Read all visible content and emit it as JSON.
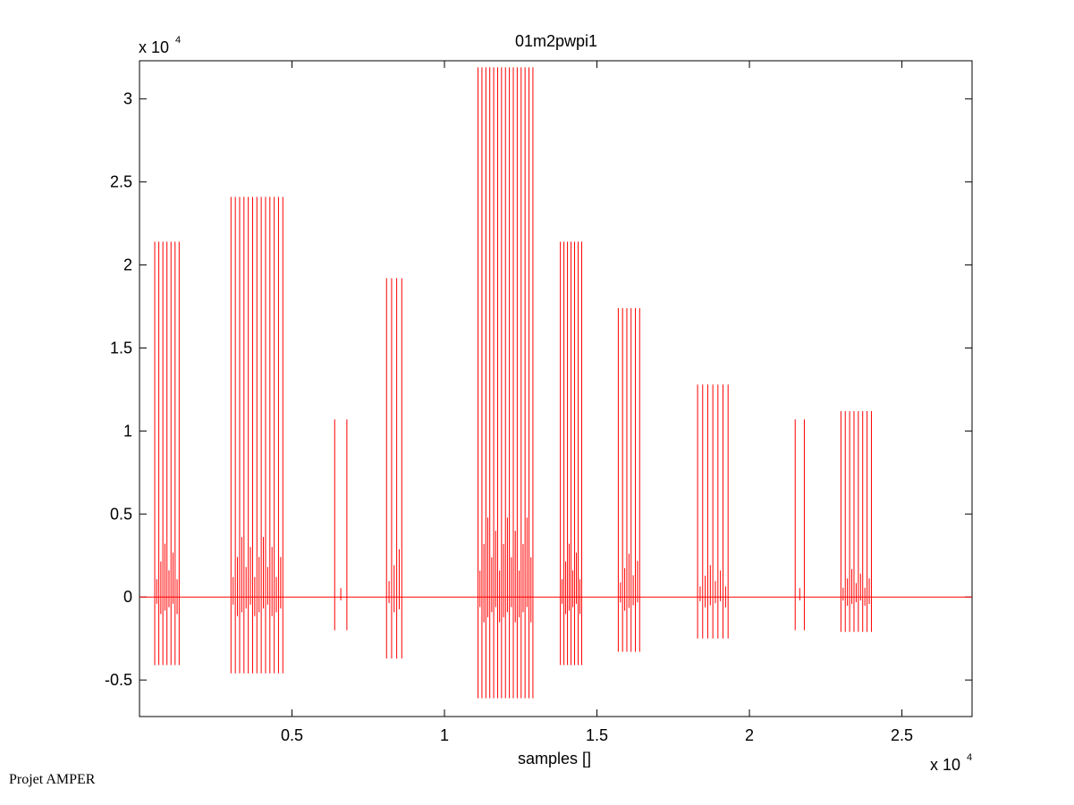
{
  "chart_data": {
    "type": "line",
    "title": "01m2pwpi1",
    "xlabel": "samples []",
    "ylabel": "",
    "x_multiplier": "x 10^4",
    "y_multiplier": "x 10^4",
    "xlim": [
      0,
      27300
    ],
    "ylim": [
      -7200,
      32300
    ],
    "xticks": [
      5000,
      10000,
      15000,
      20000,
      25000
    ],
    "xtick_labels": [
      "0.5",
      "1",
      "1.5",
      "2",
      "2.5"
    ],
    "yticks": [
      -5000,
      0,
      5000,
      10000,
      15000,
      20000,
      25000,
      30000
    ],
    "ytick_labels": [
      "-0.5",
      "0",
      "0.5",
      "1",
      "1.5",
      "2",
      "2.5",
      "3"
    ],
    "grid": false,
    "line_color": "#ff0000",
    "segments": [
      {
        "x_start": 500,
        "x_end": 1300,
        "count": 7,
        "min": -4100,
        "max": 21400
      },
      {
        "x_start": 3000,
        "x_end": 4700,
        "count": 13,
        "min": -4600,
        "max": 24100
      },
      {
        "x_start": 6400,
        "x_end": 6800,
        "count": 2,
        "min": -2000,
        "max": 10700
      },
      {
        "x_start": 8100,
        "x_end": 8600,
        "count": 4,
        "min": -3700,
        "max": 19200
      },
      {
        "x_start": 11100,
        "x_end": 12900,
        "count": 15,
        "min": -6100,
        "max": 31900
      },
      {
        "x_start": 13800,
        "x_end": 14500,
        "count": 7,
        "min": -4100,
        "max": 21400
      },
      {
        "x_start": 15700,
        "x_end": 16400,
        "count": 6,
        "min": -3300,
        "max": 17400
      },
      {
        "x_start": 18300,
        "x_end": 19300,
        "count": 7,
        "min": -2500,
        "max": 12800
      },
      {
        "x_start": 21500,
        "x_end": 21800,
        "count": 2,
        "min": -2000,
        "max": 10700
      },
      {
        "x_start": 23000,
        "x_end": 24000,
        "count": 8,
        "min": -2100,
        "max": 11200
      }
    ]
  },
  "footer": {
    "text": "Projet AMPER"
  }
}
